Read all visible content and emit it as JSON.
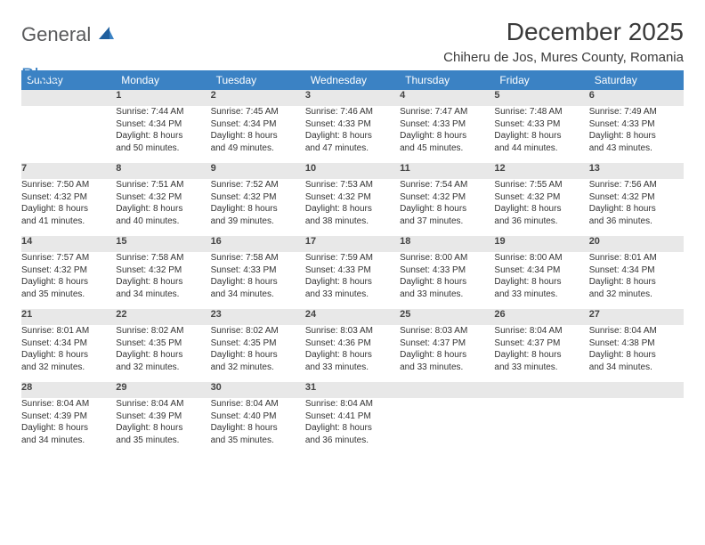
{
  "logo": {
    "text1": "General",
    "text2": "Blue"
  },
  "title": "December 2025",
  "location": "Chiheru de Jos, Mures County, Romania",
  "colors": {
    "header_bg": "#3b82c4",
    "header_text": "#ffffff",
    "daynum_bg": "#e8e8e8",
    "daynum_border_top": "#3b82c4",
    "text": "#333333",
    "logo_gray": "#58595b",
    "logo_blue": "#3b82c4"
  },
  "weekdays": [
    "Sunday",
    "Monday",
    "Tuesday",
    "Wednesday",
    "Thursday",
    "Friday",
    "Saturday"
  ],
  "weeks": [
    {
      "nums": [
        "",
        "1",
        "2",
        "3",
        "4",
        "5",
        "6"
      ],
      "cells": [
        null,
        {
          "sr": "Sunrise: 7:44 AM",
          "ss": "Sunset: 4:34 PM",
          "d1": "Daylight: 8 hours",
          "d2": "and 50 minutes."
        },
        {
          "sr": "Sunrise: 7:45 AM",
          "ss": "Sunset: 4:34 PM",
          "d1": "Daylight: 8 hours",
          "d2": "and 49 minutes."
        },
        {
          "sr": "Sunrise: 7:46 AM",
          "ss": "Sunset: 4:33 PM",
          "d1": "Daylight: 8 hours",
          "d2": "and 47 minutes."
        },
        {
          "sr": "Sunrise: 7:47 AM",
          "ss": "Sunset: 4:33 PM",
          "d1": "Daylight: 8 hours",
          "d2": "and 45 minutes."
        },
        {
          "sr": "Sunrise: 7:48 AM",
          "ss": "Sunset: 4:33 PM",
          "d1": "Daylight: 8 hours",
          "d2": "and 44 minutes."
        },
        {
          "sr": "Sunrise: 7:49 AM",
          "ss": "Sunset: 4:33 PM",
          "d1": "Daylight: 8 hours",
          "d2": "and 43 minutes."
        }
      ]
    },
    {
      "nums": [
        "7",
        "8",
        "9",
        "10",
        "11",
        "12",
        "13"
      ],
      "cells": [
        {
          "sr": "Sunrise: 7:50 AM",
          "ss": "Sunset: 4:32 PM",
          "d1": "Daylight: 8 hours",
          "d2": "and 41 minutes."
        },
        {
          "sr": "Sunrise: 7:51 AM",
          "ss": "Sunset: 4:32 PM",
          "d1": "Daylight: 8 hours",
          "d2": "and 40 minutes."
        },
        {
          "sr": "Sunrise: 7:52 AM",
          "ss": "Sunset: 4:32 PM",
          "d1": "Daylight: 8 hours",
          "d2": "and 39 minutes."
        },
        {
          "sr": "Sunrise: 7:53 AM",
          "ss": "Sunset: 4:32 PM",
          "d1": "Daylight: 8 hours",
          "d2": "and 38 minutes."
        },
        {
          "sr": "Sunrise: 7:54 AM",
          "ss": "Sunset: 4:32 PM",
          "d1": "Daylight: 8 hours",
          "d2": "and 37 minutes."
        },
        {
          "sr": "Sunrise: 7:55 AM",
          "ss": "Sunset: 4:32 PM",
          "d1": "Daylight: 8 hours",
          "d2": "and 36 minutes."
        },
        {
          "sr": "Sunrise: 7:56 AM",
          "ss": "Sunset: 4:32 PM",
          "d1": "Daylight: 8 hours",
          "d2": "and 36 minutes."
        }
      ]
    },
    {
      "nums": [
        "14",
        "15",
        "16",
        "17",
        "18",
        "19",
        "20"
      ],
      "cells": [
        {
          "sr": "Sunrise: 7:57 AM",
          "ss": "Sunset: 4:32 PM",
          "d1": "Daylight: 8 hours",
          "d2": "and 35 minutes."
        },
        {
          "sr": "Sunrise: 7:58 AM",
          "ss": "Sunset: 4:32 PM",
          "d1": "Daylight: 8 hours",
          "d2": "and 34 minutes."
        },
        {
          "sr": "Sunrise: 7:58 AM",
          "ss": "Sunset: 4:33 PM",
          "d1": "Daylight: 8 hours",
          "d2": "and 34 minutes."
        },
        {
          "sr": "Sunrise: 7:59 AM",
          "ss": "Sunset: 4:33 PM",
          "d1": "Daylight: 8 hours",
          "d2": "and 33 minutes."
        },
        {
          "sr": "Sunrise: 8:00 AM",
          "ss": "Sunset: 4:33 PM",
          "d1": "Daylight: 8 hours",
          "d2": "and 33 minutes."
        },
        {
          "sr": "Sunrise: 8:00 AM",
          "ss": "Sunset: 4:34 PM",
          "d1": "Daylight: 8 hours",
          "d2": "and 33 minutes."
        },
        {
          "sr": "Sunrise: 8:01 AM",
          "ss": "Sunset: 4:34 PM",
          "d1": "Daylight: 8 hours",
          "d2": "and 32 minutes."
        }
      ]
    },
    {
      "nums": [
        "21",
        "22",
        "23",
        "24",
        "25",
        "26",
        "27"
      ],
      "cells": [
        {
          "sr": "Sunrise: 8:01 AM",
          "ss": "Sunset: 4:34 PM",
          "d1": "Daylight: 8 hours",
          "d2": "and 32 minutes."
        },
        {
          "sr": "Sunrise: 8:02 AM",
          "ss": "Sunset: 4:35 PM",
          "d1": "Daylight: 8 hours",
          "d2": "and 32 minutes."
        },
        {
          "sr": "Sunrise: 8:02 AM",
          "ss": "Sunset: 4:35 PM",
          "d1": "Daylight: 8 hours",
          "d2": "and 32 minutes."
        },
        {
          "sr": "Sunrise: 8:03 AM",
          "ss": "Sunset: 4:36 PM",
          "d1": "Daylight: 8 hours",
          "d2": "and 33 minutes."
        },
        {
          "sr": "Sunrise: 8:03 AM",
          "ss": "Sunset: 4:37 PM",
          "d1": "Daylight: 8 hours",
          "d2": "and 33 minutes."
        },
        {
          "sr": "Sunrise: 8:04 AM",
          "ss": "Sunset: 4:37 PM",
          "d1": "Daylight: 8 hours",
          "d2": "and 33 minutes."
        },
        {
          "sr": "Sunrise: 8:04 AM",
          "ss": "Sunset: 4:38 PM",
          "d1": "Daylight: 8 hours",
          "d2": "and 34 minutes."
        }
      ]
    },
    {
      "nums": [
        "28",
        "29",
        "30",
        "31",
        "",
        "",
        ""
      ],
      "cells": [
        {
          "sr": "Sunrise: 8:04 AM",
          "ss": "Sunset: 4:39 PM",
          "d1": "Daylight: 8 hours",
          "d2": "and 34 minutes."
        },
        {
          "sr": "Sunrise: 8:04 AM",
          "ss": "Sunset: 4:39 PM",
          "d1": "Daylight: 8 hours",
          "d2": "and 35 minutes."
        },
        {
          "sr": "Sunrise: 8:04 AM",
          "ss": "Sunset: 4:40 PM",
          "d1": "Daylight: 8 hours",
          "d2": "and 35 minutes."
        },
        {
          "sr": "Sunrise: 8:04 AM",
          "ss": "Sunset: 4:41 PM",
          "d1": "Daylight: 8 hours",
          "d2": "and 36 minutes."
        },
        null,
        null,
        null
      ]
    }
  ]
}
